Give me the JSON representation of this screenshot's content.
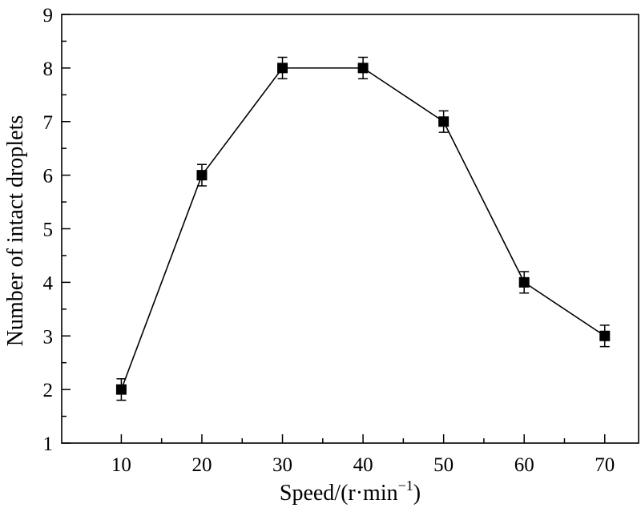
{
  "chart_data": {
    "type": "line",
    "xlabel": "Speed/(r·min",
    "xlabel_superscript": "−1",
    "xlabel_suffix": ")",
    "ylabel": "Number of intact droplets",
    "x": [
      10,
      20,
      30,
      40,
      50,
      60,
      70
    ],
    "series": [
      {
        "values": [
          2,
          6,
          8,
          8,
          7,
          4,
          3
        ],
        "errors": [
          0.2,
          0.2,
          0.2,
          0.2,
          0.2,
          0.2,
          0.2
        ]
      }
    ],
    "xlim": [
      2.6,
      74.2
    ],
    "ylim": [
      1,
      9
    ],
    "x_ticks": [
      10,
      20,
      30,
      40,
      50,
      60,
      70
    ],
    "x_tick_labels": [
      "10",
      "20",
      "30",
      "40",
      "50",
      "60",
      "70"
    ],
    "x_minor_ticks": [
      15,
      25,
      35,
      45,
      55,
      65
    ],
    "y_ticks": [
      1,
      2,
      3,
      4,
      5,
      6,
      7,
      8,
      9
    ],
    "y_tick_labels": [
      "1",
      "2",
      "3",
      "4",
      "5",
      "6",
      "7",
      "8",
      "9"
    ],
    "grid": false,
    "marker": "square",
    "line_color": "#000000",
    "marker_color": "#000000"
  }
}
